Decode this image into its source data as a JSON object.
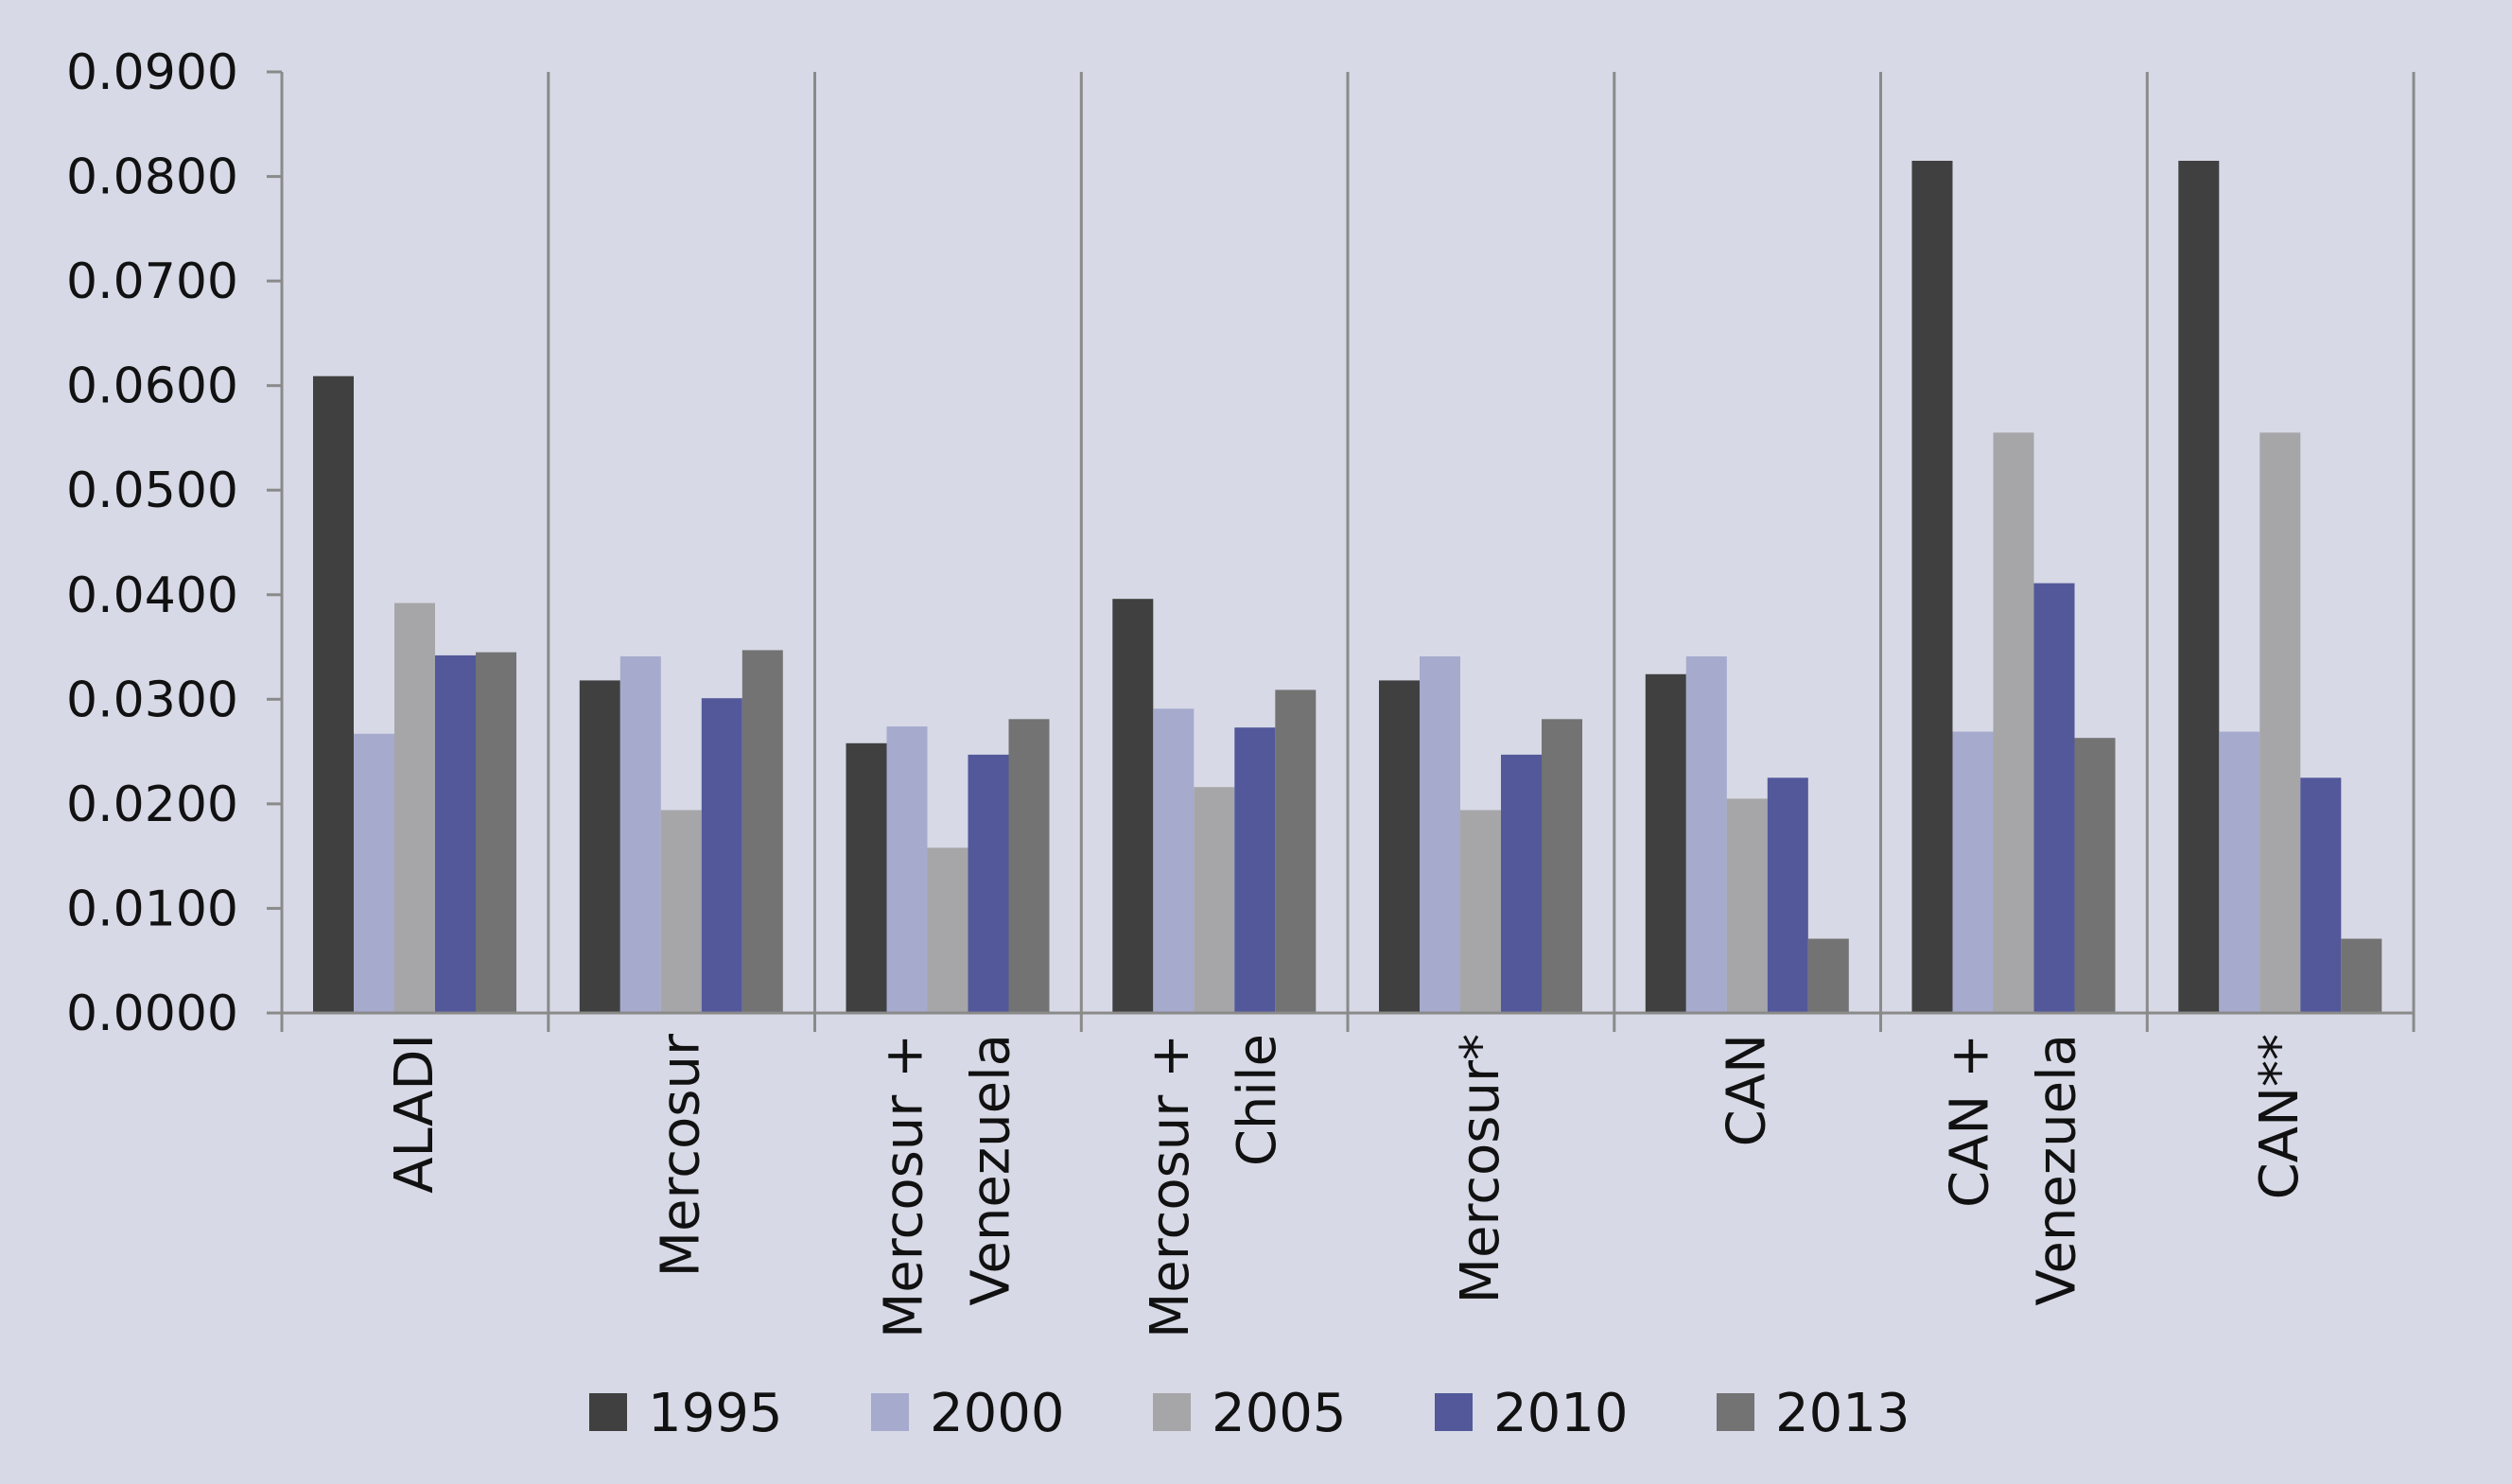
{
  "chart_data": {
    "type": "bar",
    "title": "",
    "xlabel": "",
    "ylabel": "",
    "ylim": [
      0,
      0.09
    ],
    "y_ticks": [
      "0.0000",
      "0.0100",
      "0.0200",
      "0.0300",
      "0.0400",
      "0.0500",
      "0.0600",
      "0.0700",
      "0.0800",
      "0.0900"
    ],
    "categories": [
      [
        "ALADI"
      ],
      [
        "Mercosur"
      ],
      [
        "Mercosur +",
        "Venezuela"
      ],
      [
        "Mercosur +",
        "Chile"
      ],
      [
        "Mercosur*"
      ],
      [
        "CAN"
      ],
      [
        "CAN +",
        "Venezuela"
      ],
      [
        "CAN**"
      ]
    ],
    "series": [
      {
        "name": "1995",
        "color": "#404040",
        "values": [
          0.0609,
          0.0318,
          0.0258,
          0.0396,
          0.0318,
          0.0324,
          0.0815,
          0.0815
        ]
      },
      {
        "name": "2000",
        "color": "#a6aacd",
        "values": [
          0.0267,
          0.0341,
          0.0274,
          0.0291,
          0.0341,
          0.0341,
          0.0269,
          0.0269
        ]
      },
      {
        "name": "2005",
        "color": "#a6a6a8",
        "values": [
          0.0392,
          0.0194,
          0.0158,
          0.0216,
          0.0194,
          0.0205,
          0.0555,
          0.0555
        ]
      },
      {
        "name": "2010",
        "color": "#52589a",
        "values": [
          0.0342,
          0.0301,
          0.0247,
          0.0273,
          0.0247,
          0.0225,
          0.0411,
          0.0225
        ]
      },
      {
        "name": "2013",
        "color": "#737373",
        "values": [
          0.0345,
          0.0347,
          0.0281,
          0.0309,
          0.0281,
          0.0071,
          0.0263,
          0.0071
        ]
      }
    ],
    "grid": false,
    "legend_position": "bottom"
  }
}
